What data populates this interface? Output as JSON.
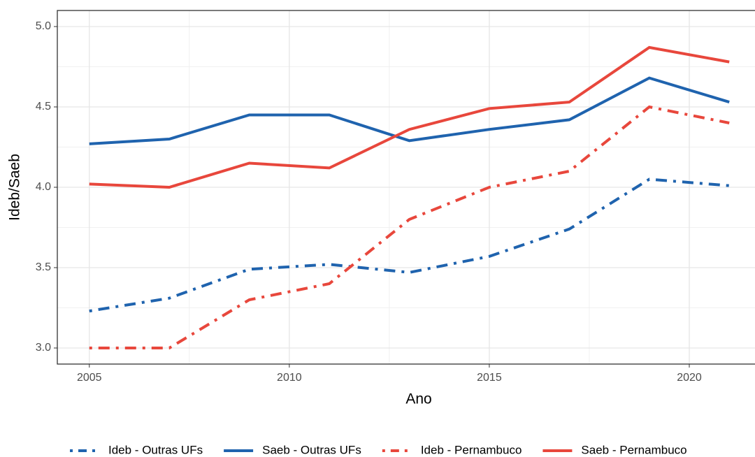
{
  "chart_data": {
    "type": "line",
    "x_label": "Ano",
    "y_label": "Ideb/Saeb",
    "x": [
      2005,
      2007,
      2009,
      2011,
      2013,
      2015,
      2017,
      2019,
      2021
    ],
    "series": [
      {
        "name": "Ideb - Outras UFs",
        "color": "#1f63ae",
        "linestyle": "dashdot",
        "values": [
          3.23,
          3.31,
          3.49,
          3.52,
          3.47,
          3.57,
          3.74,
          4.05,
          4.01
        ]
      },
      {
        "name": "Saeb - Outras UFs",
        "color": "#1f63ae",
        "linestyle": "solid",
        "values": [
          4.27,
          4.3,
          4.45,
          4.45,
          4.29,
          4.36,
          4.42,
          4.68,
          4.53
        ]
      },
      {
        "name": "Ideb - Pernambuco",
        "color": "#e8473c",
        "linestyle": "dashdot",
        "values": [
          3.0,
          3.0,
          3.3,
          3.4,
          3.8,
          4.0,
          4.1,
          4.5,
          4.4
        ]
      },
      {
        "name": "Saeb - Pernambuco",
        "color": "#e8473c",
        "linestyle": "solid",
        "values": [
          4.02,
          4.0,
          4.15,
          4.12,
          4.36,
          4.49,
          4.53,
          4.87,
          4.78
        ]
      }
    ],
    "xlim": [
      2004.2,
      2021.8
    ],
    "ylim": [
      2.9,
      5.1
    ],
    "xticks": [
      2005,
      2010,
      2015,
      2020
    ],
    "yticks": [
      {
        "value": 3.0,
        "label": "3.0"
      },
      {
        "value": 3.5,
        "label": "3.5"
      },
      {
        "value": 4.0,
        "label": "4.0"
      },
      {
        "value": 4.5,
        "label": "4.5"
      },
      {
        "value": 5.0,
        "label": "5.0"
      }
    ],
    "grid": true,
    "legend": "bottom"
  }
}
